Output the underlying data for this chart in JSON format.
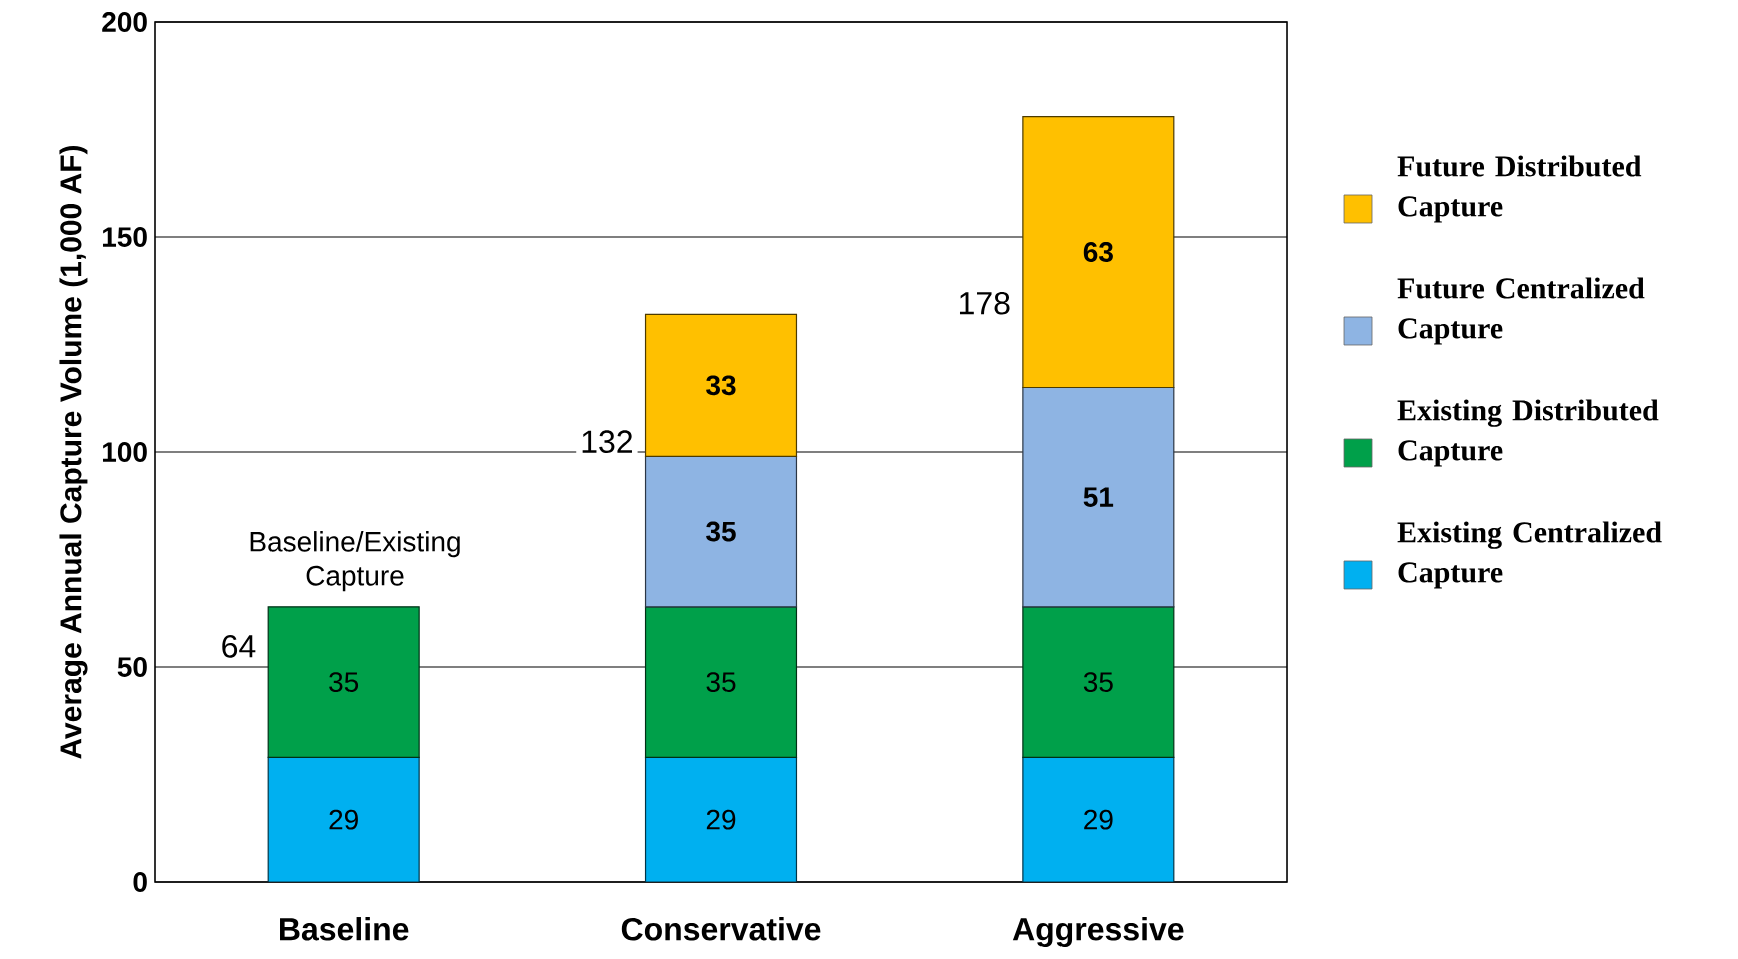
{
  "chart_data": {
    "type": "bar",
    "stacked": true,
    "ylabel": "Average Annual Capture Volume (1,000 AF)",
    "categories": [
      "Baseline",
      "Conservative",
      "Aggressive"
    ],
    "series": [
      {
        "name": "Existing Centralized Capture",
        "color": "#00b0f0",
        "values": [
          29,
          29,
          29
        ]
      },
      {
        "name": "Existing Distributed Capture",
        "color": "#00a04a",
        "values": [
          35,
          35,
          35
        ]
      },
      {
        "name": "Future Centralized Capture",
        "color": "#8eb4e3",
        "values": [
          null,
          35,
          51
        ]
      },
      {
        "name": "Future Distributed Capture",
        "color": "#ffc000",
        "values": [
          null,
          33,
          63
        ]
      }
    ],
    "ylim": [
      0,
      200
    ],
    "yticks": [
      0,
      50,
      100,
      150,
      200
    ],
    "grid": "y",
    "legend": "right",
    "data_labels": true,
    "totals": [
      "64",
      "132",
      "178"
    ],
    "annotations": [
      {
        "text": "Baseline/Existing Capture",
        "x": "Baseline",
        "y": 64
      }
    ]
  }
}
